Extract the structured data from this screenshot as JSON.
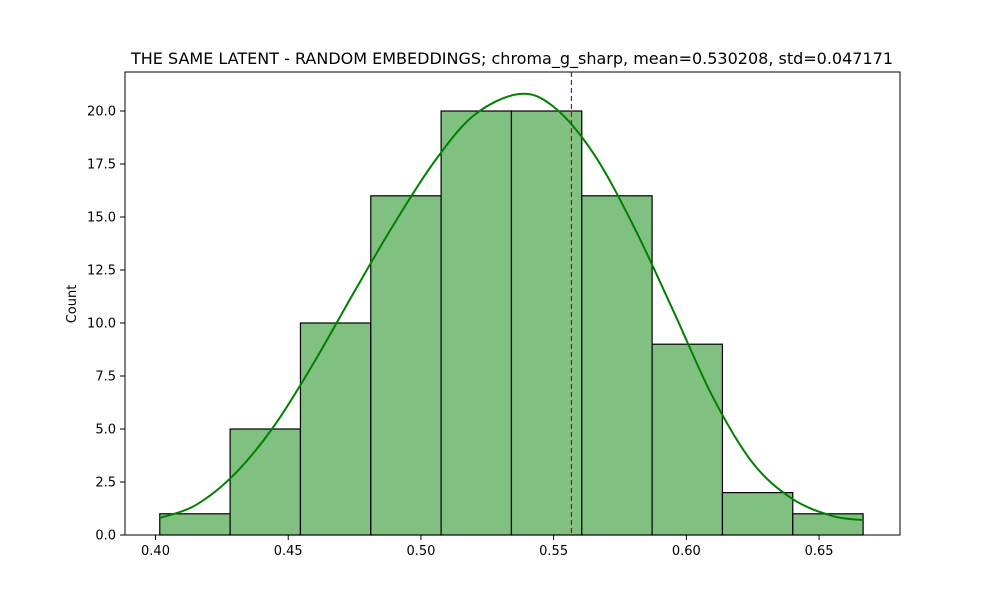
{
  "chart_data": {
    "type": "bar",
    "title": "THE SAME LATENT - RANDOM EMBEDDINGS; chroma_g_sharp, mean=0.530208, std=0.047171",
    "xlabel": "",
    "ylabel": "Count",
    "xlim": [
      0.3885,
      0.6805
    ],
    "ylim": [
      0,
      21.84
    ],
    "x_ticks": [
      0.4,
      0.45,
      0.5,
      0.55,
      0.6,
      0.65
    ],
    "x_tick_labels": [
      "0.40",
      "0.45",
      "0.50",
      "0.55",
      "0.60",
      "0.65"
    ],
    "y_ticks": [
      0,
      2.5,
      5,
      7.5,
      10,
      12.5,
      15,
      17.5,
      20
    ],
    "y_tick_labels": [
      "0.0",
      "2.5",
      "5.0",
      "7.5",
      "10.0",
      "12.5",
      "15.0",
      "17.5",
      "20.0"
    ],
    "bin_edges": [
      0.4016,
      0.4281,
      0.4546,
      0.4811,
      0.5076,
      0.5341,
      0.5606,
      0.5871,
      0.6136,
      0.6401,
      0.6666
    ],
    "counts": [
      1,
      5,
      10,
      16,
      20,
      20,
      16,
      9,
      2,
      1
    ],
    "kde": {
      "x": [
        0.4016,
        0.415,
        0.43,
        0.445,
        0.46,
        0.475,
        0.49,
        0.505,
        0.52,
        0.537,
        0.55,
        0.565,
        0.58,
        0.595,
        0.61,
        0.625,
        0.64,
        0.655,
        0.6666
      ],
      "y": [
        0.8,
        1.4,
        2.9,
        5.2,
        8.2,
        11.5,
        14.7,
        17.6,
        19.8,
        20.8,
        20.2,
        18.0,
        14.6,
        10.6,
        6.5,
        3.4,
        1.7,
        0.9,
        0.7
      ]
    },
    "vline_x": 0.5567,
    "colors": {
      "bar_fill": "#80c080",
      "bar_edge": "#000000",
      "kde_line": "#008000",
      "vline": "#cc0000"
    },
    "grid": false,
    "legend": "none"
  }
}
